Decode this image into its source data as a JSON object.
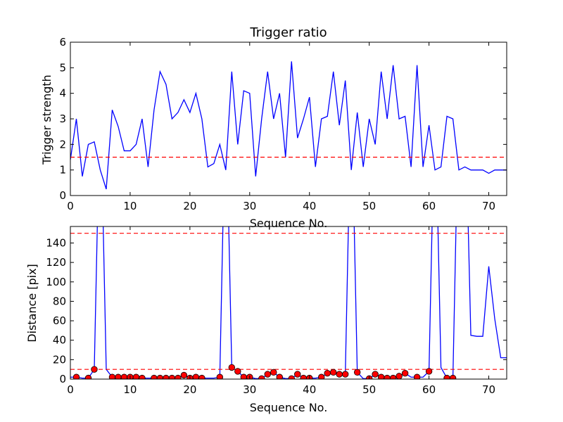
{
  "chart_data": [
    {
      "type": "line",
      "title": "Trigger ratio",
      "xlabel": "Sequence No.",
      "ylabel": "Trigger strength",
      "xlim": [
        0,
        73
      ],
      "ylim": [
        0,
        6
      ],
      "xticks": [
        0,
        10,
        20,
        30,
        40,
        50,
        60,
        70
      ],
      "yticks": [
        0,
        1,
        2,
        3,
        4,
        5,
        6
      ],
      "grid": false,
      "series": [
        {
          "color": "#0000ff",
          "x": [
            0,
            1,
            2,
            3,
            4,
            5,
            6,
            7,
            8,
            9,
            10,
            11,
            12,
            13,
            14,
            15,
            16,
            17,
            18,
            19,
            20,
            21,
            22,
            23,
            24,
            25,
            26,
            27,
            28,
            29,
            30,
            31,
            32,
            33,
            34,
            35,
            36,
            37,
            38,
            39,
            40,
            41,
            42,
            43,
            44,
            45,
            46,
            47,
            48,
            49,
            50,
            51,
            52,
            53,
            54,
            55,
            56,
            57,
            58,
            59,
            60,
            61,
            62,
            63,
            64,
            65,
            66,
            67,
            68,
            69,
            70,
            71,
            72,
            73
          ],
          "values": [
            1.4,
            3.0,
            0.75,
            2.0,
            2.1,
            1.0,
            0.25,
            3.35,
            2.7,
            1.75,
            1.75,
            2.0,
            3.0,
            1.12,
            3.35,
            4.85,
            4.35,
            3.0,
            3.25,
            3.75,
            3.25,
            4.0,
            3.0,
            1.12,
            1.25,
            2.0,
            1.0,
            4.85,
            2.0,
            4.1,
            4.0,
            0.75,
            3.0,
            4.85,
            3.0,
            4.0,
            1.5,
            5.25,
            2.25,
            3.0,
            3.85,
            1.12,
            3.0,
            3.1,
            4.85,
            2.75,
            4.5,
            1.0,
            3.25,
            1.12,
            3.0,
            2.0,
            4.85,
            3.0,
            5.1,
            3.0,
            3.1,
            1.12,
            5.1,
            1.12,
            2.75,
            1.0,
            1.12,
            3.1,
            3.0,
            1.0,
            1.12,
            1.0,
            1.0,
            1.0,
            0.87,
            1.0,
            1.0,
            1.0
          ]
        }
      ],
      "reference_lines": [
        {
          "y": 1.5,
          "color": "#ff0000",
          "style": "dashed"
        }
      ]
    },
    {
      "type": "line",
      "title": "",
      "xlabel": "Sequence No.",
      "ylabel": "Distance [pix]",
      "xlim": [
        0,
        73
      ],
      "ylim": [
        0,
        157
      ],
      "xticks": [
        0,
        10,
        20,
        30,
        40,
        50,
        60,
        70
      ],
      "yticks": [
        0,
        20,
        40,
        60,
        80,
        100,
        120,
        140
      ],
      "grid": false,
      "series": [
        {
          "color": "#0000ff",
          "x": [
            0,
            1,
            2,
            3,
            4,
            5,
            6,
            7,
            8,
            9,
            10,
            11,
            12,
            13,
            14,
            15,
            16,
            17,
            18,
            19,
            20,
            21,
            22,
            23,
            24,
            25,
            26,
            27,
            28,
            29,
            30,
            31,
            32,
            33,
            34,
            35,
            36,
            37,
            38,
            39,
            40,
            41,
            42,
            43,
            44,
            45,
            46,
            47,
            48,
            49,
            50,
            51,
            52,
            53,
            54,
            55,
            56,
            57,
            58,
            59,
            60,
            61,
            62,
            63,
            64,
            65,
            66,
            67,
            68,
            69,
            70,
            71,
            72,
            73
          ],
          "values": [
            2,
            2,
            1,
            1,
            10,
            300,
            10,
            2,
            2,
            2,
            2,
            2,
            1,
            1,
            1,
            1,
            1,
            1,
            1,
            4,
            1,
            2,
            1,
            1,
            1,
            2,
            300,
            12,
            8,
            2,
            2,
            0.5,
            0.5,
            5,
            7,
            2,
            0.5,
            0.5,
            5,
            1,
            1,
            1,
            2,
            6,
            7,
            5,
            5,
            300,
            7,
            0.5,
            0.5,
            5,
            2,
            1,
            1,
            3,
            6,
            2,
            2,
            2,
            8,
            300,
            12,
            1,
            1,
            300,
            300,
            45,
            44,
            44,
            116,
            62,
            22,
            22
          ],
          "markers": {
            "color": "#ff0000",
            "x": [
              1,
              3,
              4,
              7,
              8,
              9,
              10,
              11,
              12,
              14,
              15,
              16,
              17,
              18,
              19,
              20,
              21,
              22,
              25,
              27,
              28,
              29,
              30,
              32,
              33,
              34,
              35,
              37,
              38,
              39,
              40,
              42,
              43,
              44,
              45,
              46,
              48,
              50,
              51,
              52,
              53,
              54,
              55,
              56,
              58,
              60,
              63,
              64
            ],
            "values": [
              2,
              1,
              10,
              2,
              2,
              2,
              2,
              2,
              1,
              1,
              1,
              1,
              1,
              1,
              4,
              1,
              2,
              1,
              2,
              12,
              8,
              2,
              2,
              0.5,
              5,
              7,
              2,
              0.5,
              5,
              1,
              1,
              2,
              6,
              7,
              5,
              5,
              7,
              0.5,
              5,
              2,
              1,
              1,
              3,
              6,
              2,
              8,
              1,
              1
            ]
          }
        }
      ],
      "reference_lines": [
        {
          "y": 150,
          "color": "#ff0000",
          "style": "dashed"
        },
        {
          "y": 10,
          "color": "#ff0000",
          "style": "dashed"
        }
      ]
    }
  ]
}
